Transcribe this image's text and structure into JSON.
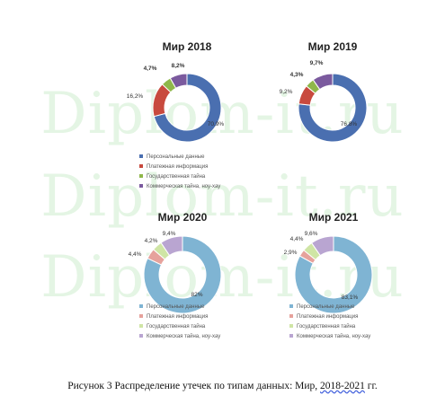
{
  "watermark": "Diplom-it.ru",
  "caption": {
    "text": "Рисунок 3 Распределение утечек по типам данных: Мир,",
    "years": "2018-2021",
    "suffix": "гг."
  },
  "colors": {
    "personal": "#4a6fb0",
    "payment": "#c84a3e",
    "state": "#8fb74a",
    "commercial": "#7b5a9e",
    "personal_light": "#7fb4d3",
    "payment_light": "#e6a29c",
    "state_light": "#cfe5a5",
    "commercial_light": "#b9a5d1"
  },
  "chart_data": [
    {
      "type": "pie",
      "title": "Мир 2018",
      "categories": [
        "Персональные данные",
        "Платежная информация",
        "Государственная тайна",
        "Коммерческая тайна, ноу-хау"
      ],
      "values": [
        70.9,
        16.2,
        4.7,
        8.2
      ],
      "labels": [
        "70,9%",
        "16,2%",
        "4,7%",
        "8,2%"
      ],
      "legend": [
        "Персональные данные",
        "Платежная информация",
        "Государственная тайна",
        "Коммерческая тайна, ноу-хау"
      ]
    },
    {
      "type": "pie",
      "title": "Мир 2019",
      "categories": [
        "Персональные данные",
        "Платежная информация",
        "Государственная тайна",
        "Коммерческая тайна, ноу-хау"
      ],
      "values": [
        76.8,
        9.2,
        4.3,
        9.7
      ],
      "labels": [
        "76,8%",
        "9,2%",
        "4,3%",
        "9,7%"
      ]
    },
    {
      "type": "pie",
      "title": "Мир 2020",
      "categories": [
        "Персональные данные",
        "Платежная информация",
        "Государственная тайна",
        "Коммерческая тайна, ноу-хау"
      ],
      "values": [
        82,
        4.4,
        4.2,
        9.4
      ],
      "labels": [
        "82%",
        "4,4%",
        "4,2%",
        "9,4%"
      ],
      "legend": [
        "Персональные данные",
        "Платежная информация",
        "Государственная тайна",
        "Коммерческая тайна, ноу-хау"
      ]
    },
    {
      "type": "pie",
      "title": "Мир 2021",
      "categories": [
        "Персональные данные",
        "Платежная информация",
        "Государственная тайна",
        "Коммерческая тайна, ноу-хау"
      ],
      "values": [
        83.1,
        2.9,
        4.4,
        9.6
      ],
      "labels": [
        "83,1%",
        "2,9%",
        "4,4%",
        "9,6%"
      ],
      "legend": [
        "Персональные данные",
        "Платежная информация",
        "Государственная тайна",
        "Коммерческая тайна, ноу-хау"
      ]
    }
  ]
}
